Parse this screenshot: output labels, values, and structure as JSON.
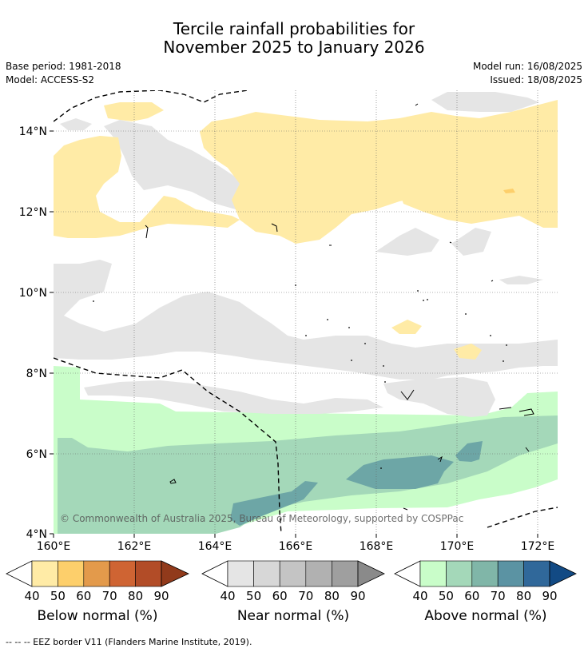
{
  "header": {
    "title_line1": "Tercile rainfall probabilities for",
    "title_line2": "November 2025 to January 2026",
    "base_period": "Base period: 1981-2018",
    "model": "Model: ACCESS-S2",
    "model_run": "Model run: 16/08/2025",
    "issued": "Issued: 18/08/2025"
  },
  "map": {
    "lat_labels": [
      "14°N",
      "12°N",
      "10°N",
      "8°N",
      "6°N",
      "4°N"
    ],
    "lon_labels": [
      "160°E",
      "162°E",
      "164°E",
      "166°E",
      "168°E",
      "170°E",
      "172°E"
    ],
    "copyright": "© Commonwealth of Australia 2025, Bureau of Meteorology, supported by COSPPac"
  },
  "colorbars": [
    {
      "name": "Below normal (%)",
      "ticks": [
        "40",
        "50",
        "60",
        "70",
        "80",
        "90"
      ],
      "colors": [
        "#ffeba6",
        "#fdcf6b",
        "#e39a4b",
        "#cf6433",
        "#b24c27",
        "#913a1b"
      ],
      "low_color": "#ffffff"
    },
    {
      "name": "Near normal (%)",
      "ticks": [
        "40",
        "50",
        "60",
        "70",
        "80",
        "90"
      ],
      "colors": [
        "#e5e5e5",
        "#d7d7d7",
        "#c4c4c4",
        "#b1b1b1",
        "#9f9f9f",
        "#8a8a8a"
      ],
      "low_color": "#ffffff"
    },
    {
      "name": "Above normal (%)",
      "ticks": [
        "40",
        "50",
        "60",
        "70",
        "80",
        "90"
      ],
      "colors": [
        "#c9fdc9",
        "#a4d8b9",
        "#80b6a8",
        "#5b93a3",
        "#30689a",
        "#124a84"
      ],
      "low_color": "#ffffff"
    }
  ],
  "legend": {
    "footer": "--  --  -- EEZ border V11 (Flanders Marine Institute, 2019)."
  }
}
